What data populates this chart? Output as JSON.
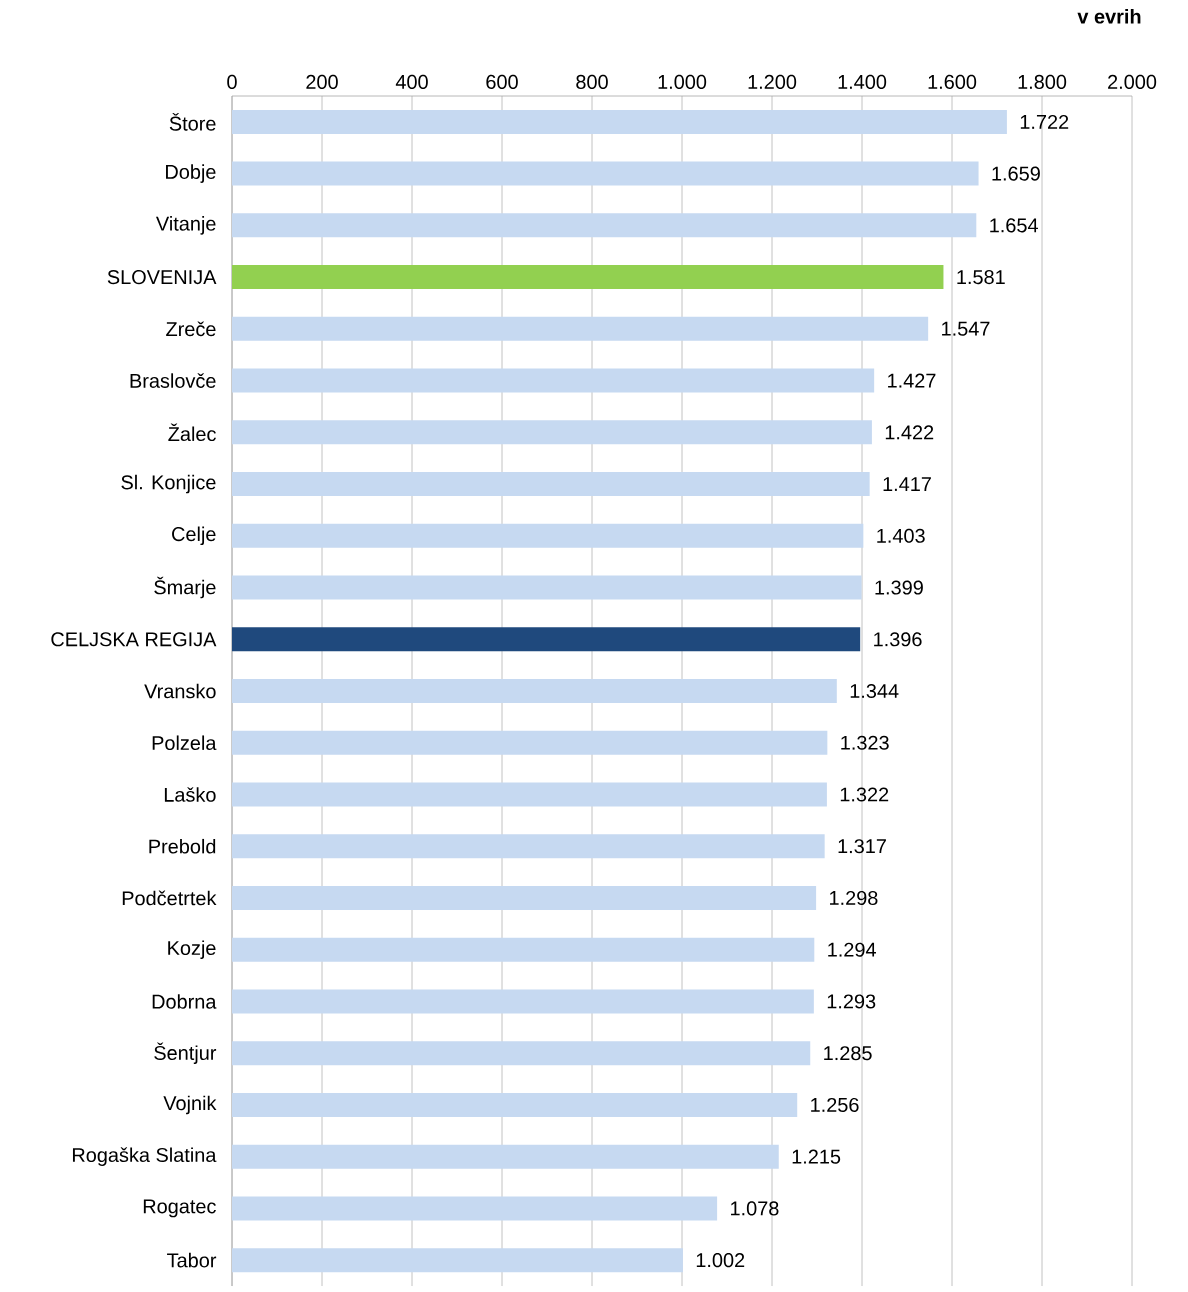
{
  "chart_data": {
    "type": "bar",
    "orientation": "horizontal",
    "xlabel": "v evrih",
    "categories": [
      "Štore",
      "Dobje",
      "Vitanje",
      "SLOVENIJA",
      "Zreče",
      "Braslovče",
      "Žalec",
      "Sl. Konjice",
      "Celje",
      "Šmarje",
      "CELJSKA REGIJA",
      "Vransko",
      "Polzela",
      "Laško",
      "Prebold",
      "Podčetrtek",
      "Kozje",
      "Dobrna",
      "Šentjur",
      "Vojnik",
      "Rogaška Slatina",
      "Rogatec",
      "Tabor"
    ],
    "values": [
      1722,
      1659,
      1654,
      1581,
      1547,
      1427,
      1422,
      1417,
      1403,
      1399,
      1396,
      1344,
      1323,
      1322,
      1317,
      1298,
      1294,
      1293,
      1285,
      1256,
      1215,
      1078,
      1002
    ],
    "value_labels": [
      "1.722",
      "1.659",
      "1.654",
      "1.581",
      "1.547",
      "1.427",
      "1.422",
      "1.417",
      "1.403",
      "1.399",
      "1.396",
      "1.344",
      "1.323",
      "1.322",
      "1.317",
      "1.298",
      "1.294",
      "1.293",
      "1.285",
      "1.256",
      "1.215",
      "1.078",
      "1.002"
    ],
    "colors": [
      "#c6d9f1",
      "#c6d9f1",
      "#c6d9f1",
      "#92d050",
      "#c6d9f1",
      "#c6d9f1",
      "#c6d9f1",
      "#c6d9f1",
      "#c6d9f1",
      "#c6d9f1",
      "#1f497d",
      "#c6d9f1",
      "#c6d9f1",
      "#c6d9f1",
      "#c6d9f1",
      "#c6d9f1",
      "#c6d9f1",
      "#c6d9f1",
      "#c6d9f1",
      "#c6d9f1",
      "#c6d9f1",
      "#c6d9f1",
      "#c6d9f1"
    ],
    "xlim": [
      0,
      2000
    ],
    "xticks": [
      0,
      200,
      400,
      600,
      800,
      {
        "value": 1000,
        "label": "1.000"
      },
      {
        "value": 1200,
        "label": "1.200"
      },
      {
        "value": 1400,
        "label": "1.400"
      },
      {
        "value": 1600,
        "label": "1.600"
      },
      {
        "value": 1800,
        "label": "1.800"
      },
      {
        "value": 2000,
        "label": "2.000"
      }
    ],
    "grid": "x"
  }
}
